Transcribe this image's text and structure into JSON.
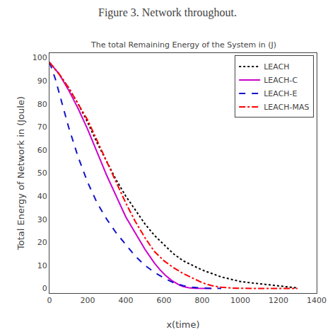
{
  "chart_data": {
    "type": "line",
    "title": "Figure 3. Network throughout.",
    "subtitle": "The total Remaining Energy of the System in (J)",
    "xlabel": "x(time)",
    "ylabel": "Total Energy of Network in (Joule)",
    "xlim": [
      0,
      1400
    ],
    "ylim": [
      -2,
      102
    ],
    "xticks": [
      0,
      200,
      400,
      600,
      800,
      1000,
      1200,
      1400
    ],
    "yticks": [
      0,
      10,
      20,
      30,
      40,
      50,
      60,
      70,
      80,
      90,
      100
    ],
    "grid": false,
    "legend": "upper right",
    "series": [
      {
        "name": "LEACH",
        "color": "black",
        "line_style": "dotted",
        "x": [
          0,
          50,
          100,
          150,
          200,
          250,
          300,
          350,
          400,
          450,
          500,
          550,
          600,
          650,
          700,
          750,
          800,
          850,
          900,
          950,
          1000,
          1050,
          1100,
          1150,
          1200,
          1250,
          1300
        ],
        "values": [
          98,
          93,
          87,
          80,
          72,
          63,
          55,
          47,
          40,
          34,
          28,
          23,
          19,
          15,
          12,
          10,
          8,
          6.5,
          5,
          4,
          3,
          2.5,
          2,
          1.5,
          1,
          0.5,
          0.2
        ]
      },
      {
        "name": "LEACH-C",
        "color": "#cc00cc",
        "line_style": "solid",
        "x": [
          0,
          50,
          100,
          150,
          200,
          250,
          300,
          350,
          400,
          450,
          500,
          550,
          580,
          610,
          640,
          660,
          680,
          700,
          730,
          760,
          800,
          850
        ],
        "values": [
          98,
          93,
          86,
          78,
          69,
          59,
          49,
          40,
          31,
          24,
          17,
          11,
          8,
          5.5,
          3.5,
          2.5,
          1.5,
          0.8,
          0.3,
          0.1,
          0,
          0
        ]
      },
      {
        "name": "LEACH-E",
        "color": "#1111cc",
        "line_style": "dashed",
        "x": [
          0,
          30,
          60,
          100,
          150,
          200,
          250,
          300,
          350,
          400,
          450,
          500,
          550,
          600,
          650,
          700,
          750,
          800,
          850,
          900
        ],
        "values": [
          98,
          91,
          82,
          70,
          57,
          46,
          37,
          30,
          24,
          19,
          14,
          10,
          7,
          4.5,
          2.5,
          1.2,
          0.5,
          0.2,
          0.05,
          0
        ]
      },
      {
        "name": "LEACH-MAS",
        "color": "red",
        "line_style": "dashdot",
        "x": [
          0,
          50,
          100,
          150,
          200,
          250,
          300,
          350,
          400,
          450,
          500,
          550,
          600,
          650,
          700,
          750,
          800,
          850,
          900,
          950,
          1000,
          1100,
          1200,
          1300
        ],
        "values": [
          98,
          93,
          87,
          80,
          73,
          64,
          55,
          46,
          37,
          29,
          22,
          16,
          12,
          9,
          6.5,
          4.5,
          2.5,
          1.2,
          0.5,
          0.2,
          0.05,
          0.02,
          0,
          0
        ]
      }
    ]
  }
}
